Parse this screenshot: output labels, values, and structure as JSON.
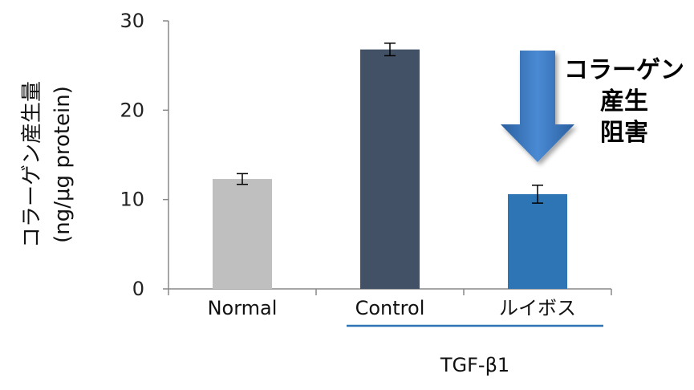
{
  "chart_data": {
    "type": "bar",
    "title": "",
    "xlabel": "",
    "ylabel_line1": "コラーゲン産生量",
    "ylabel_line2": "(ng/μg protein)",
    "ylim": [
      0,
      30
    ],
    "yticks": [
      "0",
      "10",
      "20",
      "30"
    ],
    "ytick_values": [
      0,
      10,
      20,
      30
    ],
    "categories": [
      "Normal",
      "Control",
      "ルイボス"
    ],
    "values": [
      12.3,
      26.8,
      10.6
    ],
    "errors": [
      0.6,
      0.7,
      1.0
    ],
    "colors": [
      "#bfbfbf",
      "#435166",
      "#2e75b6"
    ],
    "group_label": "TGF-β1",
    "group_line_color": "#2e75b6",
    "annotation": {
      "lines": [
        "コラーゲン",
        "産生",
        "阻害"
      ],
      "arrow_color": "#3a78c2"
    }
  }
}
